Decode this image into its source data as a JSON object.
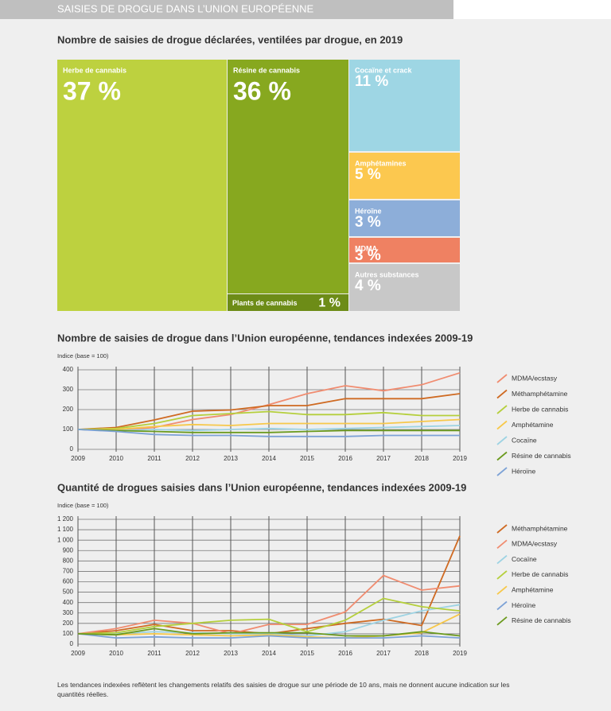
{
  "header": {
    "title": "SAISIES DE DROGUE DANS L’UNION EUROPÉENNE"
  },
  "chart_data": [
    {
      "type": "treemap",
      "title": "Nombre de saisies de drogue déclarées, ventilées par drogue, en 2019",
      "categories": [
        "Herbe de cannabis",
        "Résine de cannabis",
        "Plants de cannabis",
        "Cocaïne et crack",
        "Amphétamines",
        "Héroïne",
        "MDMA",
        "Autres substances"
      ],
      "values": [
        37,
        36,
        1,
        11,
        5,
        3,
        3,
        4
      ],
      "value_labels": [
        "37 %",
        "36 %",
        "1 %",
        "11 %",
        "5 %",
        "3 %",
        "3 %",
        "4 %"
      ],
      "colors": [
        "#bdd13f",
        "#87a81f",
        "#6d8c17",
        "#9ed6e4",
        "#fcc84f",
        "#8daed9",
        "#ef8162",
        "#c8c8c8"
      ]
    },
    {
      "type": "line",
      "title": "Nombre de saisies de drogue dans l’Union européenne, tendances indexées 2009-19",
      "y_label": "Indice (base = 100)",
      "x": [
        2009,
        2010,
        2011,
        2012,
        2013,
        2014,
        2015,
        2016,
        2017,
        2018,
        2019
      ],
      "xlim": [
        2009,
        2019
      ],
      "xticks": [
        2009,
        2010,
        2011,
        2012,
        2013,
        2014,
        2015,
        2016,
        2017,
        2018,
        2019
      ],
      "ylim": [
        0,
        400
      ],
      "yticks": [
        0,
        100,
        200,
        300,
        400
      ],
      "grid": true,
      "legend": "right",
      "series": [
        {
          "name": "MDMA/ecstasy",
          "color": "#f08c70",
          "values": [
            100,
            95,
            110,
            150,
            175,
            225,
            280,
            320,
            295,
            325,
            385
          ]
        },
        {
          "name": "Méthamphétamine",
          "color": "#cf6a22",
          "values": [
            100,
            110,
            148,
            192,
            198,
            220,
            220,
            255,
            255,
            255,
            280
          ]
        },
        {
          "name": "Herbe de cannabis",
          "color": "#b5cf3c",
          "values": [
            100,
            105,
            130,
            170,
            180,
            190,
            175,
            175,
            185,
            170,
            170
          ]
        },
        {
          "name": "Amphétamine",
          "color": "#f7c84a",
          "values": [
            100,
            100,
            115,
            125,
            120,
            130,
            130,
            130,
            130,
            140,
            150
          ]
        },
        {
          "name": "Cocaïne",
          "color": "#9dd3e3",
          "values": [
            100,
            95,
            100,
            95,
            100,
            105,
            100,
            105,
            110,
            115,
            120
          ]
        },
        {
          "name": "Résine de cannabis",
          "color": "#6b9a1e",
          "values": [
            100,
            95,
            90,
            85,
            85,
            85,
            90,
            95,
            95,
            95,
            95
          ]
        },
        {
          "name": "Héroïne",
          "color": "#7da2d6",
          "values": [
            100,
            90,
            75,
            70,
            70,
            65,
            65,
            65,
            70,
            70,
            70
          ]
        }
      ]
    },
    {
      "type": "line",
      "title": "Quantité de drogues saisies dans l’Union européenne, tendances indexées 2009-19",
      "y_label": "Indice (base = 100)",
      "x": [
        2009,
        2010,
        2011,
        2012,
        2013,
        2014,
        2015,
        2016,
        2017,
        2018,
        2019
      ],
      "xlim": [
        2009,
        2019
      ],
      "xticks": [
        2009,
        2010,
        2011,
        2012,
        2013,
        2014,
        2015,
        2016,
        2017,
        2018,
        2019
      ],
      "ylim": [
        0,
        1200
      ],
      "yticks": [
        0,
        100,
        200,
        300,
        400,
        500,
        600,
        700,
        800,
        900,
        {
          "value": 1000,
          "label": "1 000"
        },
        {
          "value": 1100,
          "label": "1 100"
        },
        {
          "value": 1200,
          "label": "1 200"
        }
      ],
      "grid": true,
      "legend": "right",
      "series": [
        {
          "name": "Méthamphétamine",
          "color": "#cf6a22",
          "values": [
            100,
            130,
            190,
            130,
            130,
            100,
            150,
            200,
            240,
            180,
            1040
          ]
        },
        {
          "name": "MDMA/ecstasy",
          "color": "#f08c70",
          "values": [
            100,
            150,
            230,
            200,
            100,
            190,
            190,
            310,
            660,
            520,
            560
          ]
        },
        {
          "name": "Cocaïne",
          "color": "#9dd3e3",
          "values": [
            100,
            100,
            120,
            110,
            100,
            100,
            80,
            120,
            230,
            320,
            380
          ]
        },
        {
          "name": "Herbe de cannabis",
          "color": "#b5cf3c",
          "values": [
            100,
            110,
            170,
            200,
            230,
            240,
            120,
            230,
            440,
            360,
            320
          ]
        },
        {
          "name": "Amphétamine",
          "color": "#f7c84a",
          "values": [
            100,
            90,
            100,
            90,
            80,
            90,
            70,
            60,
            80,
            110,
            290
          ]
        },
        {
          "name": "Héroïne",
          "color": "#7da2d6",
          "values": [
            100,
            60,
            70,
            60,
            60,
            80,
            60,
            60,
            60,
            80,
            60
          ]
        },
        {
          "name": "Résine de cannabis",
          "color": "#6b9a1e",
          "values": [
            100,
            90,
            150,
            100,
            110,
            110,
            110,
            80,
            80,
            120,
            80
          ]
        }
      ]
    }
  ],
  "footnote": "Les tendances indexées reflètent les changements relatifs des saisies de drogue sur une période de 10 ans, mais ne donnent aucune indication sur les quantités réelles."
}
